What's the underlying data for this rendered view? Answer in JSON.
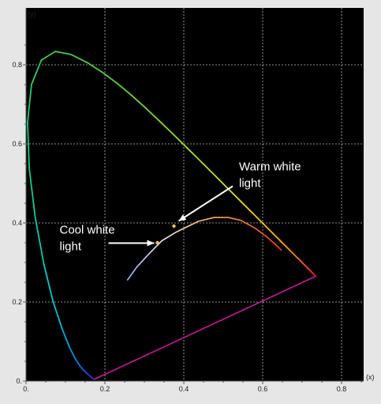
{
  "chart_data": {
    "type": "scatter",
    "title": "",
    "xlabel": "(x)",
    "ylabel": "(y)",
    "xlim": [
      0,
      0.85
    ],
    "ylim": [
      0,
      0.85
    ],
    "grid": true,
    "x_ticks": [
      0,
      0.2,
      0.4,
      0.6,
      0.8
    ],
    "y_ticks": [
      0,
      0.2,
      0.4,
      0.6,
      0.8
    ],
    "x_tick_labels": [
      "0.",
      "0.2",
      "0.4",
      "0.6",
      "0.8"
    ],
    "y_tick_labels": [
      "0.",
      "0.2",
      "0.4",
      "0.6",
      "0.8"
    ],
    "spectral_locus": [
      [
        0.1741,
        0.005
      ],
      [
        0.174,
        0.005
      ],
      [
        0.173,
        0.0048
      ],
      [
        0.172,
        0.0048
      ],
      [
        0.1666,
        0.0089
      ],
      [
        0.1644,
        0.0109
      ],
      [
        0.1611,
        0.0138
      ],
      [
        0.1566,
        0.0177
      ],
      [
        0.151,
        0.0227
      ],
      [
        0.144,
        0.0297
      ],
      [
        0.1355,
        0.0399
      ],
      [
        0.1241,
        0.0578
      ],
      [
        0.1096,
        0.0868
      ],
      [
        0.0913,
        0.1327
      ],
      [
        0.0687,
        0.2007
      ],
      [
        0.0454,
        0.295
      ],
      [
        0.0235,
        0.4127
      ],
      [
        0.0082,
        0.5384
      ],
      [
        0.0039,
        0.6548
      ],
      [
        0.0139,
        0.7502
      ],
      [
        0.0389,
        0.812
      ],
      [
        0.0743,
        0.8338
      ],
      [
        0.1142,
        0.8262
      ],
      [
        0.1547,
        0.8059
      ],
      [
        0.1929,
        0.7816
      ],
      [
        0.2296,
        0.7543
      ],
      [
        0.2658,
        0.7243
      ],
      [
        0.3016,
        0.6923
      ],
      [
        0.3373,
        0.6589
      ],
      [
        0.3731,
        0.6245
      ],
      [
        0.4087,
        0.5896
      ],
      [
        0.4441,
        0.5547
      ],
      [
        0.4788,
        0.5202
      ],
      [
        0.5125,
        0.4866
      ],
      [
        0.5448,
        0.4544
      ],
      [
        0.5752,
        0.4242
      ],
      [
        0.6029,
        0.3965
      ],
      [
        0.627,
        0.3725
      ],
      [
        0.6482,
        0.3514
      ],
      [
        0.6658,
        0.334
      ],
      [
        0.6801,
        0.3197
      ],
      [
        0.6915,
        0.3083
      ],
      [
        0.7006,
        0.2993
      ],
      [
        0.7079,
        0.292
      ],
      [
        0.714,
        0.2859
      ],
      [
        0.719,
        0.2809
      ],
      [
        0.723,
        0.277
      ],
      [
        0.726,
        0.274
      ],
      [
        0.7283,
        0.2717
      ],
      [
        0.73,
        0.27
      ],
      [
        0.7347,
        0.2653
      ]
    ],
    "planckian_locus": [
      [
        0.2565,
        0.2547
      ],
      [
        0.2806,
        0.2883
      ],
      [
        0.3135,
        0.3237
      ],
      [
        0.3447,
        0.3552
      ],
      [
        0.3805,
        0.3768
      ],
      [
        0.4369,
        0.4041
      ],
      [
        0.4764,
        0.4137
      ],
      [
        0.5125,
        0.4138
      ],
      [
        0.5448,
        0.4066
      ],
      [
        0.5801,
        0.3873
      ],
      [
        0.6086,
        0.3662
      ],
      [
        0.6319,
        0.3463
      ],
      [
        0.648,
        0.3306
      ]
    ],
    "points": [
      {
        "x": 0.333,
        "y": 0.35
      },
      {
        "x": 0.375,
        "y": 0.392
      }
    ],
    "annotations": [
      {
        "text_lines": [
          "Warm white",
          "light"
        ],
        "x": 0.54,
        "y": 0.565,
        "arrow_to": [
          0.387,
          0.405
        ]
      },
      {
        "text_lines": [
          "Cool white",
          "light"
        ],
        "x": 0.085,
        "y": 0.405,
        "arrow_to": [
          0.325,
          0.349
        ]
      }
    ]
  }
}
